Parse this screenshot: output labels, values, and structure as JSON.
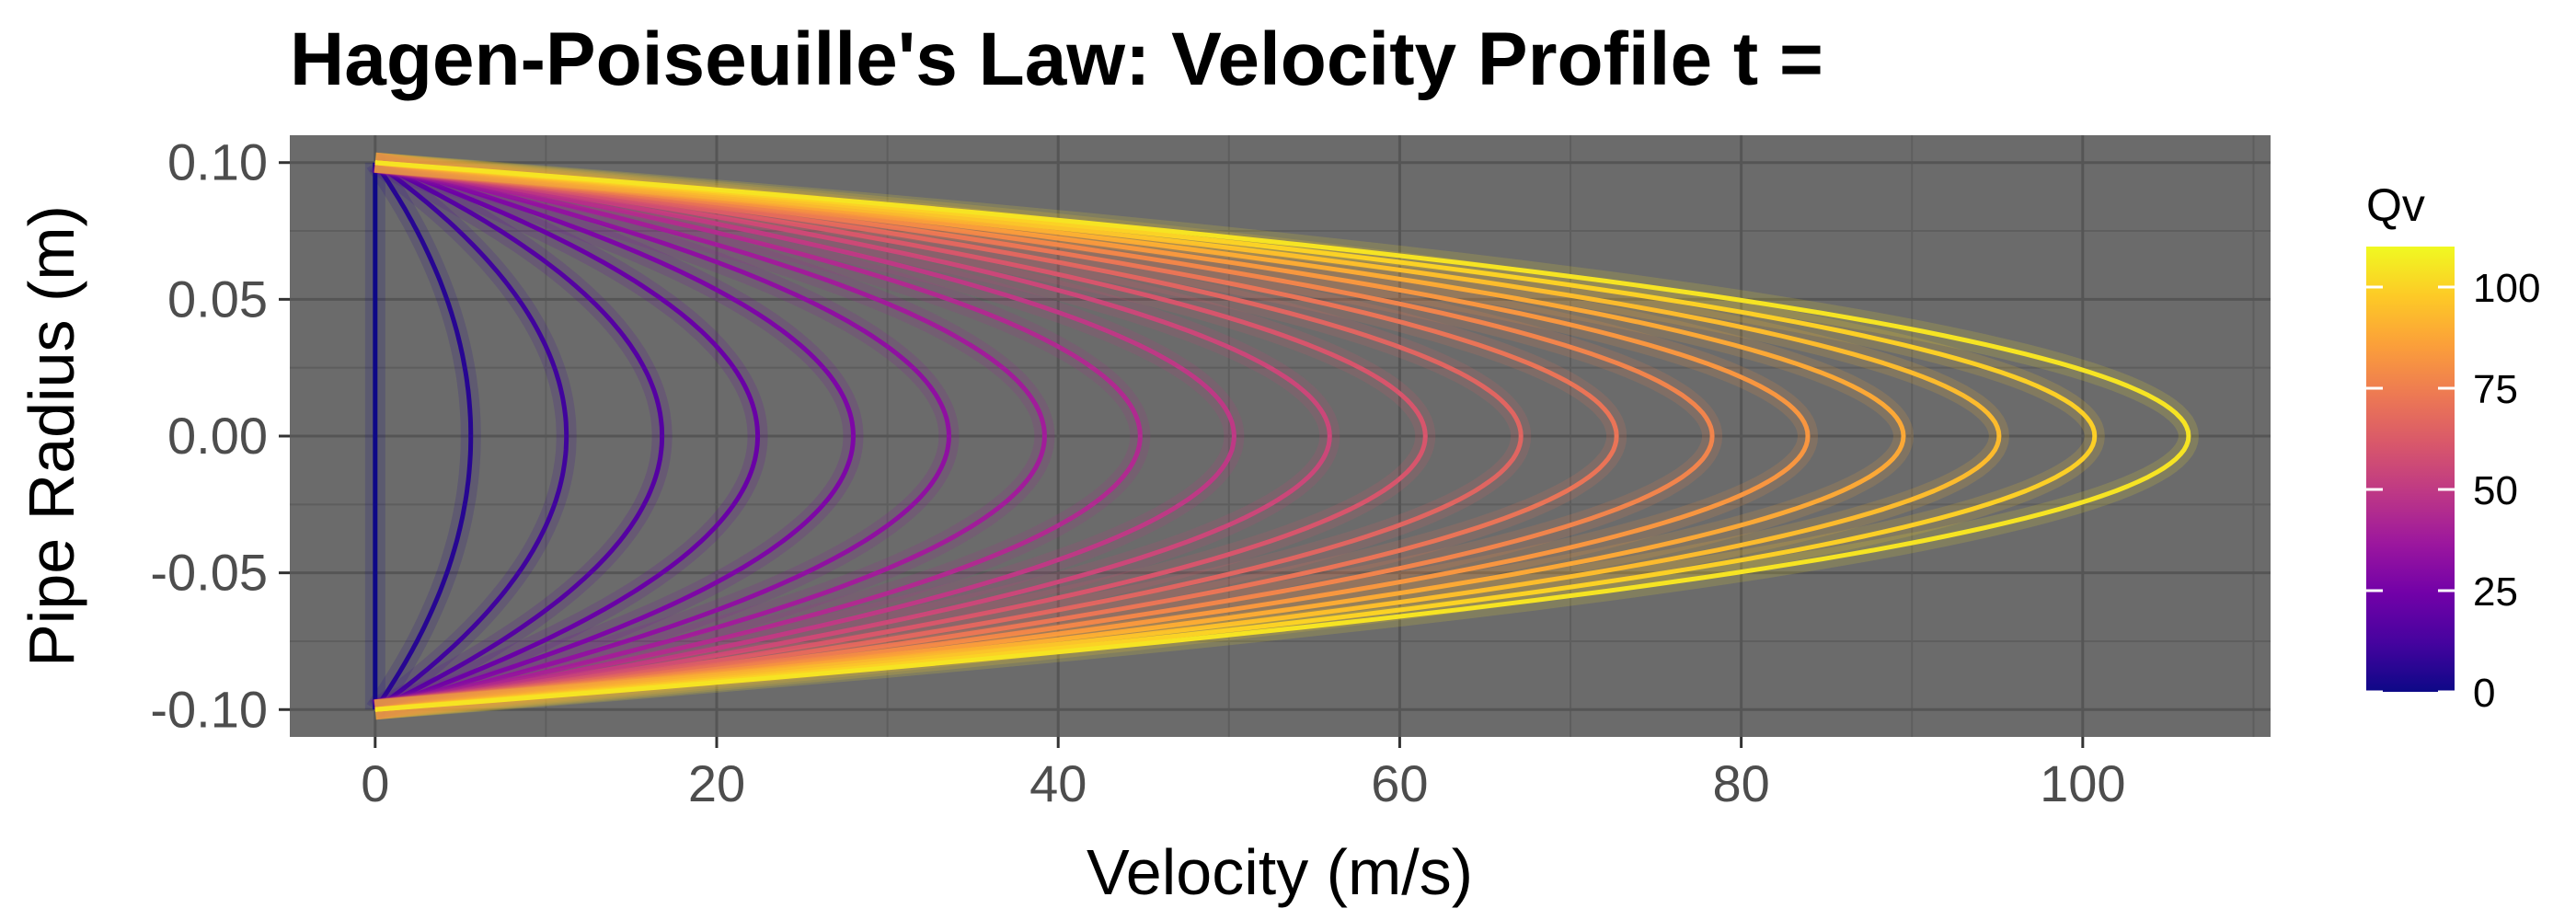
{
  "chart_data": {
    "type": "line",
    "title": "Hagen-Poiseuille's Law: Velocity Profile t =",
    "xlabel": "Velocity (m/s)",
    "ylabel": "Pipe Radius (m)",
    "xlim": [
      -5,
      111
    ],
    "ylim": [
      -0.11,
      0.11
    ],
    "x_ticks": [
      0,
      20,
      40,
      60,
      80,
      100
    ],
    "x_tick_labels": [
      "0",
      "20",
      "40",
      "60",
      "80",
      "100"
    ],
    "y_ticks": [
      0.1,
      0.05,
      0.0,
      -0.05,
      -0.1
    ],
    "y_tick_labels": [
      "0.10",
      "0.05",
      "0.00",
      "-0.05",
      "-0.10"
    ],
    "grid": true,
    "panel_background": "#6b6b6b",
    "series_shape": "parabolic velocity profile v(r) = vmax * (1 - (r/0.1)^2), r from -0.1 to 0.1",
    "series": [
      {
        "vmax": 0.0,
        "qv": 0
      },
      {
        "vmax": 5.6,
        "qv": 5.5
      },
      {
        "vmax": 11.2,
        "qv": 11
      },
      {
        "vmax": 16.8,
        "qv": 16.5
      },
      {
        "vmax": 22.4,
        "qv": 22
      },
      {
        "vmax": 28.0,
        "qv": 27.5
      },
      {
        "vmax": 33.6,
        "qv": 33
      },
      {
        "vmax": 39.2,
        "qv": 38.5
      },
      {
        "vmax": 44.8,
        "qv": 44
      },
      {
        "vmax": 50.3,
        "qv": 49.5
      },
      {
        "vmax": 55.9,
        "qv": 55
      },
      {
        "vmax": 61.5,
        "qv": 60.5
      },
      {
        "vmax": 67.1,
        "qv": 66
      },
      {
        "vmax": 72.7,
        "qv": 71.5
      },
      {
        "vmax": 78.3,
        "qv": 77
      },
      {
        "vmax": 83.9,
        "qv": 82.5
      },
      {
        "vmax": 89.5,
        "qv": 88
      },
      {
        "vmax": 95.1,
        "qv": 93.5
      },
      {
        "vmax": 100.7,
        "qv": 99
      },
      {
        "vmax": 106.2,
        "qv": 104.5
      }
    ],
    "legend": {
      "title": "Qv",
      "position": "right",
      "type": "colorbar",
      "colormap": "plasma",
      "range": [
        0,
        110
      ],
      "ticks": [
        0,
        25,
        50,
        75,
        100
      ],
      "tick_labels": [
        "0",
        "25",
        "50",
        "75",
        "100"
      ],
      "colors": [
        "#0d0887",
        "#46039f",
        "#7201a8",
        "#9c179e",
        "#bd3786",
        "#d8576b",
        "#ed7953",
        "#fb9f3a",
        "#fdca26",
        "#f0f921"
      ]
    }
  }
}
